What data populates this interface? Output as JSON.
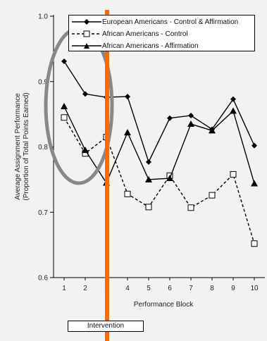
{
  "chart_data": {
    "type": "line",
    "x": [
      1,
      2,
      3,
      4,
      5,
      6,
      7,
      8,
      9,
      10
    ],
    "xlabel": "Performance Block",
    "ylabel_lines": [
      "Average Assignment Performance",
      "(Proportion of Total Points Earned)"
    ],
    "ylim": [
      0.6,
      1.0
    ],
    "yticks": [
      "0.6",
      "0.7",
      "0.8",
      "0.9",
      "1.0"
    ],
    "series": [
      {
        "name": "European Americans - Control & Affirmation",
        "values": [
          0.931,
          0.881,
          0.876,
          0.877,
          0.777,
          0.844,
          0.848,
          0.827,
          0.873,
          0.802
        ],
        "marker": "diamond-filled",
        "line": "solid"
      },
      {
        "name": "African Americans - Control",
        "values": [
          0.845,
          0.79,
          0.815,
          0.728,
          0.708,
          0.756,
          0.707,
          0.726,
          0.758,
          0.652
        ],
        "marker": "square-open",
        "line": "dashed"
      },
      {
        "name": "African Americans - Affirmation",
        "values": [
          0.862,
          0.795,
          0.745,
          0.822,
          0.75,
          0.752,
          0.835,
          0.825,
          0.855,
          0.744
        ],
        "marker": "triangle-filled",
        "line": "solid"
      }
    ],
    "legend_position": "top-right",
    "grid": false,
    "annotations": {
      "intervention_label": "Intervention",
      "intervention_line_after_block": 3,
      "highlighted_blocks": [
        1,
        2
      ]
    }
  },
  "colors": {
    "intervention_line": "#ff6a00",
    "highlight_ellipse": "#888888",
    "series_color": "#000000",
    "background": "#f2f2f2"
  }
}
